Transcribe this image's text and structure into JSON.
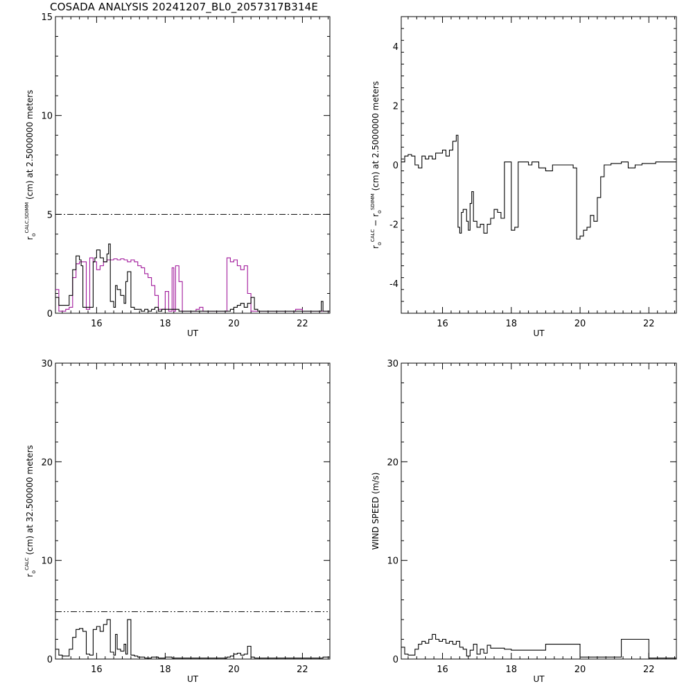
{
  "page": {
    "title": "COSADA ANALYSIS 20241207_BL0_2057317B314E"
  },
  "colors": {
    "ink": "#000000",
    "magenta": "#a0179a",
    "background": "#ffffff"
  },
  "chart_data": [
    {
      "id": "p1",
      "type": "line",
      "step": true,
      "xlabel": "UT",
      "ylabel": "r_o^CALC,SDIMM (cm) at 2.5000000 meters",
      "ylabel_parts": {
        "base": "r",
        "sub": "o",
        "sup": "CALC,SDIMM",
        "rest": " (cm)  at  2.5000000 meters"
      },
      "xlim": [
        14.8,
        22.8
      ],
      "ylim": [
        0,
        15
      ],
      "xticks": [
        16,
        18,
        20,
        22
      ],
      "yticks": [
        0,
        5,
        10,
        15
      ],
      "reference_line": {
        "y": 5.0,
        "style": "dash-dot"
      },
      "series": [
        {
          "color": "#a0179a",
          "x": [
            14.8,
            14.9,
            15.0,
            15.1,
            15.2,
            15.3,
            15.4,
            15.5,
            15.6,
            15.7,
            15.75,
            15.8,
            15.9,
            16.0,
            16.1,
            16.2,
            16.3,
            16.4,
            16.5,
            16.6,
            16.7,
            16.8,
            16.9,
            17.0,
            17.1,
            17.2,
            17.3,
            17.4,
            17.5,
            17.6,
            17.7,
            17.8,
            17.9,
            18.0,
            18.1,
            18.2,
            18.25,
            18.3,
            18.4,
            18.5,
            18.6,
            18.7,
            18.8,
            18.9,
            19.0,
            19.1,
            19.2,
            19.3,
            19.4,
            19.5,
            19.6,
            19.7,
            19.8,
            19.9,
            20.0,
            20.1,
            20.2,
            20.3,
            20.4,
            20.5,
            20.6,
            20.7,
            20.8,
            20.9,
            21.0,
            21.2,
            21.4,
            21.6,
            21.8,
            22.0,
            22.2,
            22.4,
            22.6,
            22.8
          ],
          "y": [
            1.2,
            0.1,
            0.1,
            0.2,
            0.3,
            1.8,
            2.5,
            2.6,
            2.6,
            0.2,
            0.2,
            2.8,
            2.6,
            2.2,
            2.4,
            2.6,
            2.7,
            2.7,
            2.75,
            2.7,
            2.75,
            2.7,
            2.6,
            2.7,
            2.6,
            2.4,
            2.3,
            2.0,
            1.8,
            1.4,
            0.9,
            0.2,
            0.2,
            1.1,
            0.1,
            2.3,
            0.1,
            2.4,
            1.6,
            0.1,
            0.1,
            0.1,
            0.1,
            0.2,
            0.3,
            0.1,
            0.1,
            0.1,
            0.1,
            0.1,
            0.1,
            0.1,
            2.8,
            2.6,
            2.7,
            2.4,
            2.2,
            2.4,
            1.0,
            0.1,
            0.1,
            0.1,
            0.1,
            0.1,
            0.1,
            0.1,
            0.1,
            0.1,
            0.2,
            0.1,
            0.1,
            0.1,
            0.1,
            0.1
          ]
        },
        {
          "color": "#000000",
          "x": [
            14.8,
            14.9,
            15.0,
            15.1,
            15.2,
            15.3,
            15.4,
            15.5,
            15.55,
            15.6,
            15.7,
            15.8,
            15.9,
            15.95,
            16.0,
            16.1,
            16.2,
            16.3,
            16.35,
            16.4,
            16.5,
            16.55,
            16.6,
            16.7,
            16.8,
            16.85,
            16.9,
            17.0,
            17.1,
            17.2,
            17.3,
            17.4,
            17.5,
            17.6,
            17.7,
            17.8,
            17.9,
            18.0,
            18.2,
            18.4,
            18.6,
            18.8,
            19.0,
            19.2,
            19.4,
            19.6,
            19.8,
            19.9,
            20.0,
            20.1,
            20.2,
            20.3,
            20.4,
            20.5,
            20.6,
            20.7,
            20.8,
            21.0,
            21.2,
            21.4,
            21.6,
            21.8,
            22.0,
            22.2,
            22.4,
            22.5,
            22.55,
            22.6,
            22.8
          ],
          "y": [
            0.8,
            0.4,
            0.4,
            0.4,
            0.9,
            2.2,
            2.9,
            2.7,
            2.4,
            0.3,
            0.3,
            0.3,
            2.6,
            2.8,
            3.2,
            2.8,
            2.6,
            3.0,
            3.5,
            0.6,
            0.3,
            1.4,
            1.2,
            0.9,
            0.5,
            1.6,
            2.1,
            0.3,
            0.2,
            0.2,
            0.1,
            0.2,
            0.1,
            0.2,
            0.3,
            0.1,
            0.2,
            0.2,
            0.2,
            0.1,
            0.1,
            0.1,
            0.1,
            0.1,
            0.1,
            0.1,
            0.1,
            0.2,
            0.3,
            0.4,
            0.5,
            0.3,
            0.5,
            0.8,
            0.2,
            0.1,
            0.1,
            0.1,
            0.1,
            0.1,
            0.1,
            0.1,
            0.1,
            0.1,
            0.1,
            0.1,
            0.6,
            0.1,
            0.1
          ]
        }
      ]
    },
    {
      "id": "p2",
      "type": "line",
      "step": true,
      "xlabel": "UT",
      "ylabel": "r_o^CALC - r_o^SDIMM (cm) at 2.5000000 meters",
      "ylabel_parts": {
        "base": "r",
        "sub": "o",
        "sup": "CALC",
        "mid": " − r",
        "sub2": "o",
        "sup2": "SDIMM",
        "rest": " (cm) at 2.5000000 meters"
      },
      "xlim": [
        14.8,
        22.8
      ],
      "ylim": [
        -5,
        5
      ],
      "xticks": [
        16,
        18,
        20,
        22
      ],
      "yticks": [
        -4,
        -2,
        0,
        2,
        4
      ],
      "series": [
        {
          "color": "#000000",
          "x": [
            14.8,
            14.9,
            15.0,
            15.1,
            15.2,
            15.3,
            15.4,
            15.5,
            15.6,
            15.7,
            15.8,
            15.9,
            16.0,
            16.1,
            16.2,
            16.3,
            16.4,
            16.45,
            16.5,
            16.55,
            16.6,
            16.7,
            16.75,
            16.8,
            16.85,
            16.9,
            17.0,
            17.1,
            17.2,
            17.3,
            17.4,
            17.5,
            17.6,
            17.7,
            17.8,
            17.9,
            18.0,
            18.1,
            18.2,
            18.3,
            18.4,
            18.5,
            18.6,
            18.8,
            19.0,
            19.2,
            19.4,
            19.6,
            19.8,
            19.9,
            20.0,
            20.1,
            20.2,
            20.3,
            20.4,
            20.5,
            20.6,
            20.7,
            20.8,
            20.9,
            21.0,
            21.2,
            21.4,
            21.6,
            21.8,
            22.0,
            22.2,
            22.4,
            22.6,
            22.8
          ],
          "y": [
            0.1,
            0.3,
            0.35,
            0.3,
            0.0,
            -0.1,
            0.3,
            0.2,
            0.3,
            0.2,
            0.4,
            0.4,
            0.5,
            0.3,
            0.5,
            0.8,
            1.0,
            -2.1,
            -2.3,
            -1.6,
            -1.5,
            -1.9,
            -2.2,
            -1.3,
            -0.9,
            -1.9,
            -2.1,
            -2.0,
            -2.3,
            -2.0,
            -1.8,
            -1.5,
            -1.6,
            -1.8,
            0.1,
            0.1,
            -2.2,
            -2.1,
            0.1,
            0.1,
            0.1,
            0.0,
            0.1,
            -0.1,
            -0.2,
            0.0,
            0.0,
            0.0,
            -0.1,
            -2.5,
            -2.4,
            -2.2,
            -2.1,
            -1.7,
            -1.9,
            -1.1,
            -0.4,
            0.0,
            0.0,
            0.05,
            0.05,
            0.1,
            -0.1,
            0.0,
            0.05,
            0.05,
            0.1,
            0.1,
            0.1,
            0.1
          ]
        }
      ]
    },
    {
      "id": "p3",
      "type": "line",
      "step": true,
      "xlabel": "UT",
      "ylabel": "r_o^CALC (cm) at 32.500000 meters",
      "ylabel_parts": {
        "base": "r",
        "sub": "o",
        "sup": "CALC",
        "rest": " (cm) at 32.500000 meters"
      },
      "xlim": [
        14.8,
        22.8
      ],
      "ylim": [
        0,
        30
      ],
      "xticks": [
        16,
        18,
        20,
        22
      ],
      "yticks": [
        0,
        10,
        20,
        30
      ],
      "reference_line": {
        "y": 4.8,
        "style": "dash-dot-dot"
      },
      "series": [
        {
          "color": "#000000",
          "x": [
            14.8,
            14.9,
            15.0,
            15.1,
            15.2,
            15.3,
            15.4,
            15.5,
            15.6,
            15.7,
            15.8,
            15.9,
            16.0,
            16.1,
            16.2,
            16.3,
            16.4,
            16.5,
            16.55,
            16.6,
            16.7,
            16.8,
            16.85,
            16.9,
            17.0,
            17.1,
            17.2,
            17.4,
            17.6,
            17.8,
            18.0,
            18.2,
            18.4,
            18.6,
            18.8,
            19.0,
            19.2,
            19.4,
            19.6,
            19.8,
            19.9,
            20.0,
            20.1,
            20.2,
            20.3,
            20.4,
            20.5,
            20.6,
            20.8,
            21.0,
            21.2,
            21.4,
            21.6,
            21.8,
            22.0,
            22.2,
            22.4,
            22.6,
            22.8
          ],
          "y": [
            1.0,
            0.4,
            0.3,
            0.3,
            1.0,
            2.2,
            3.0,
            3.1,
            2.8,
            0.5,
            0.4,
            3.0,
            3.3,
            2.8,
            3.5,
            4.0,
            0.7,
            0.4,
            2.5,
            1.0,
            0.8,
            1.5,
            0.5,
            4.0,
            0.4,
            0.3,
            0.2,
            0.1,
            0.2,
            0.1,
            0.2,
            0.1,
            0.1,
            0.1,
            0.1,
            0.1,
            0.1,
            0.1,
            0.1,
            0.2,
            0.3,
            0.5,
            0.6,
            0.4,
            0.5,
            1.3,
            0.2,
            0.1,
            0.1,
            0.1,
            0.1,
            0.1,
            0.1,
            0.1,
            0.1,
            0.1,
            0.1,
            0.2,
            0.2
          ]
        }
      ]
    },
    {
      "id": "p4",
      "type": "line",
      "step": true,
      "xlabel": "UT",
      "ylabel": "WIND SPEED (m/s)",
      "ylabel_parts": {
        "base": "WIND SPEED (m/s)"
      },
      "xlim": [
        14.8,
        22.8
      ],
      "ylim": [
        0,
        30
      ],
      "xticks": [
        16,
        18,
        20,
        22
      ],
      "yticks": [
        0,
        10,
        20,
        30
      ],
      "series": [
        {
          "color": "#000000",
          "x": [
            14.8,
            14.9,
            15.0,
            15.1,
            15.2,
            15.3,
            15.4,
            15.5,
            15.6,
            15.7,
            15.8,
            15.9,
            16.0,
            16.1,
            16.2,
            16.3,
            16.4,
            16.5,
            16.6,
            16.7,
            16.8,
            16.9,
            17.0,
            17.1,
            17.2,
            17.3,
            17.4,
            17.6,
            17.8,
            18.0,
            18.5,
            19.0,
            19.5,
            20.0,
            20.5,
            21.0,
            21.2,
            22.0,
            22.4,
            22.8
          ],
          "y": [
            1.2,
            0.5,
            0.4,
            0.4,
            1.0,
            1.5,
            1.8,
            1.6,
            2.0,
            2.5,
            2.0,
            1.8,
            2.0,
            1.6,
            1.8,
            1.5,
            1.8,
            1.2,
            1.0,
            0.3,
            0.9,
            1.5,
            0.5,
            1.0,
            0.6,
            1.4,
            1.1,
            1.1,
            1.0,
            0.9,
            0.9,
            1.5,
            1.5,
            0.2,
            0.2,
            0.2,
            2.0,
            0.1,
            0.1,
            0.1
          ]
        }
      ]
    }
  ]
}
